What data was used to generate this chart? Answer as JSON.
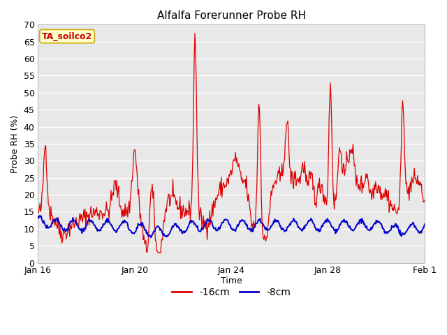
{
  "title": "Alfalfa Forerunner Probe RH",
  "xlabel": "Time",
  "ylabel": "Probe RH (%)",
  "annotation": "TA_soilco2",
  "annotation_color": "#cc0000",
  "annotation_bg": "#ffffcc",
  "annotation_border": "#ccaa00",
  "ylim": [
    0,
    70
  ],
  "yticks": [
    0,
    5,
    10,
    15,
    20,
    25,
    30,
    35,
    40,
    45,
    50,
    55,
    60,
    65,
    70
  ],
  "fig_bg": "#ffffff",
  "plot_bg": "#e8e8e8",
  "grid_color": "#ffffff",
  "line1_color": "#dd0000",
  "line2_color": "#0000cc",
  "line1_label": "-16cm",
  "line2_label": "-8cm",
  "x_start": 0,
  "x_end": 16,
  "x_tick_labels": [
    "Jan 16",
    "Jan 20",
    "Jan 24",
    "Jan 28",
    "Feb 1"
  ],
  "x_tick_positions": [
    0,
    4,
    8,
    12,
    16
  ]
}
